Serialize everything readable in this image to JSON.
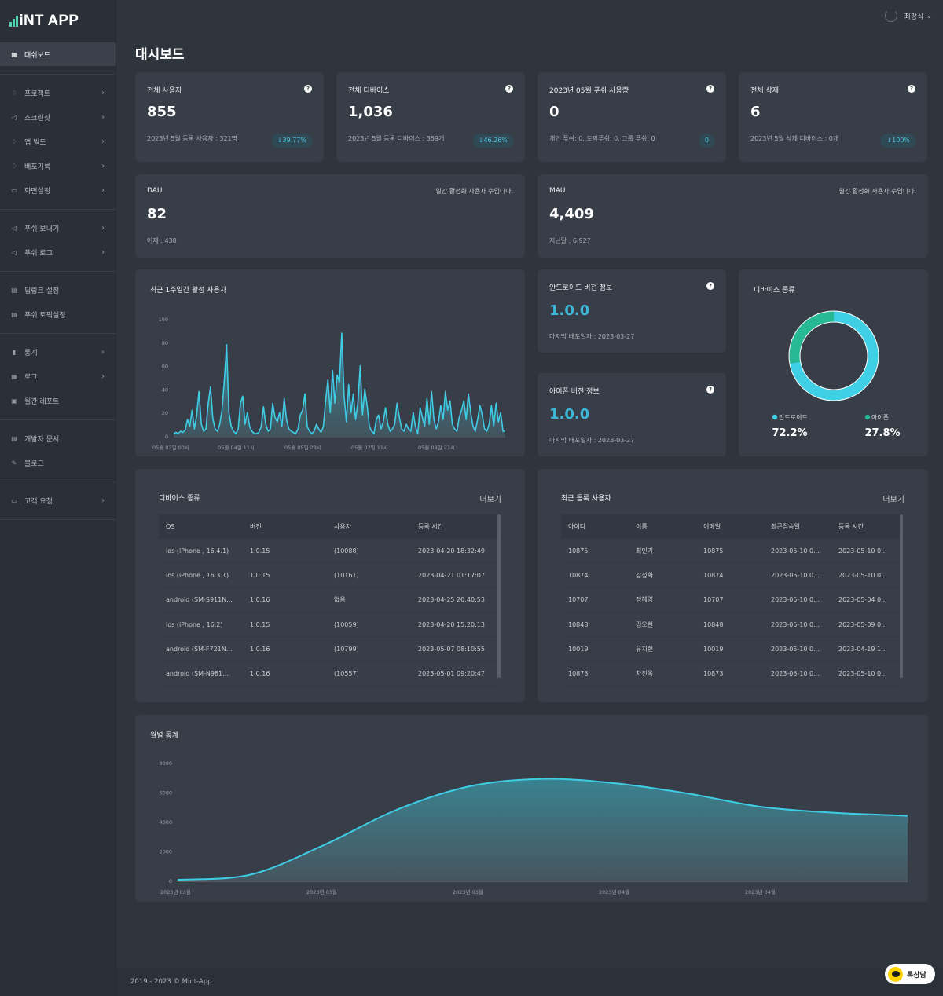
{
  "app": {
    "logo_text": "iNT APP",
    "accent": "#4cd4b0"
  },
  "header": {
    "user_name": "최강식",
    "page_title": "대시보드"
  },
  "sidebar": {
    "active": {
      "label": "대쉬보드",
      "icon": "grid-icon"
    },
    "groups": [
      [
        {
          "label": "프로젝트",
          "icon": "diamond-icon",
          "chev": "›"
        },
        {
          "label": "스크린샷",
          "icon": "send-icon",
          "chev": "›"
        },
        {
          "label": "앱 빌드",
          "icon": "diamond-icon",
          "chev": "›"
        },
        {
          "label": "배포기록",
          "icon": "diamond-icon",
          "chev": "›"
        },
        {
          "label": "화면설정",
          "icon": "card-icon",
          "chev": "›"
        }
      ],
      [
        {
          "label": "푸쉬 보내기",
          "icon": "send-icon",
          "chev": "›"
        },
        {
          "label": "푸쉬 로그",
          "icon": "send-icon",
          "chev": "›"
        }
      ],
      [
        {
          "label": "딥링크 설정",
          "icon": "doc-icon",
          "chev": ""
        },
        {
          "label": "푸쉬 토픽설정",
          "icon": "doc-icon",
          "chev": ""
        }
      ],
      [
        {
          "label": "통계",
          "icon": "bar-chart-icon",
          "chev": "›"
        },
        {
          "label": "로그",
          "icon": "table-icon",
          "chev": "›"
        },
        {
          "label": "월간 레포트",
          "icon": "calendar-icon",
          "chev": ""
        }
      ],
      [
        {
          "label": "개발자 문서",
          "icon": "doc-icon",
          "chev": ""
        },
        {
          "label": "블로그",
          "icon": "pen-icon",
          "chev": ""
        }
      ],
      [
        {
          "label": "고객 요청",
          "icon": "chat-icon",
          "chev": "›"
        }
      ]
    ]
  },
  "stats": [
    {
      "title": "전체 사용자",
      "value": "855",
      "sub": "2023년 5월 등록 사용자 : 321명",
      "badge": "↓39.77%"
    },
    {
      "title": "전체 디바이스",
      "value": "1,036",
      "sub": "2023년 5월 등록 디바이스 : 359개",
      "badge": "↓46.26%"
    },
    {
      "title": "2023년 05월 푸쉬 사용량",
      "value": "0",
      "sub": "개인 푸쉬: 0, 토픽푸쉬: 0, 그룹 푸쉬: 0",
      "badge": "0"
    },
    {
      "title": "전체 삭제",
      "value": "6",
      "sub": "2023년 5월 삭제 디바이스 : 0개",
      "badge": "↓100%"
    }
  ],
  "dau": {
    "title": "DAU",
    "desc": "일간 활성화 사용자 수입니다.",
    "value": "82",
    "sub": "어제 : 438"
  },
  "mau": {
    "title": "MAU",
    "desc": "월간 활성화 사용자 수입니다.",
    "value": "4,409",
    "sub": "지난달 : 6,927"
  },
  "android": {
    "title": "안드로이드 버전 정보",
    "version": "1.0.0",
    "sub": "마지막 배포일자 : 2023-03-27"
  },
  "ios": {
    "title": "아이폰 버전 정보",
    "version": "1.0.0",
    "sub": "마지막 배포일자 : 2023-03-27"
  },
  "device_types": {
    "title": "디바이스 종류",
    "chart_data": {
      "type": "pie",
      "labels": [
        "안드로이드",
        "아이폰"
      ],
      "values": [
        72.2,
        27.8
      ],
      "colors": [
        "#3fd0e6",
        "#27b894"
      ],
      "value_labels": [
        "72.2%",
        "27.8%"
      ]
    }
  },
  "weekly": {
    "title": "최근 1주일간 활성 사용자",
    "chart_data": {
      "type": "area",
      "y_ticks": [
        "100",
        "80",
        "60",
        "40",
        "20",
        "0"
      ],
      "ylim": [
        0,
        100
      ],
      "x_ticks": [
        "05월 03일 00시",
        "05월 04일 11시",
        "05월 05일 23시",
        "05월 07일 11시",
        "05월 08일 23시"
      ],
      "values": [
        2,
        3,
        2,
        4,
        3,
        5,
        14,
        8,
        22,
        6,
        18,
        38,
        10,
        4,
        6,
        28,
        42,
        15,
        6,
        4,
        10,
        22,
        48,
        78,
        20,
        8,
        4,
        2,
        6,
        28,
        34,
        10,
        20,
        8,
        4,
        2,
        2,
        3,
        8,
        25,
        10,
        4,
        6,
        28,
        16,
        12,
        20,
        8,
        32,
        14,
        6,
        4,
        3,
        2,
        6,
        18,
        22,
        36,
        8,
        4,
        2,
        4,
        10,
        6,
        3,
        8,
        30,
        48,
        20,
        56,
        28,
        52,
        46,
        88,
        34,
        12,
        44,
        20,
        36,
        14,
        28,
        60,
        18,
        40,
        26,
        8,
        4,
        2,
        14,
        18,
        6,
        12,
        24,
        10,
        4,
        6,
        10,
        28,
        16,
        6,
        4,
        10,
        6,
        4,
        20,
        8,
        2,
        24,
        16,
        8,
        32,
        10,
        38,
        14,
        6,
        12,
        26,
        14,
        38,
        22,
        30,
        10,
        6,
        4,
        16,
        22,
        30,
        14,
        36,
        20,
        8,
        4,
        14,
        26,
        18,
        6,
        4,
        10,
        26,
        8,
        28,
        12,
        20,
        4,
        4
      ]
    }
  },
  "device_table": {
    "title": "디바이스 종류",
    "more": "더보기",
    "headers": [
      "OS",
      "버전",
      "사용자",
      "등록 시간"
    ],
    "rows": [
      [
        "ios (iPhone , 16.4.1)",
        "1.0.15",
        "(10088)",
        "2023-04-20 18:32:49"
      ],
      [
        "ios (iPhone , 16.3.1)",
        "1.0.15",
        "(10161)",
        "2023-04-21 01:17:07"
      ],
      [
        "android (SM-S911N...",
        "1.0.16",
        "없음",
        "2023-04-25 20:40:53"
      ],
      [
        "ios (iPhone , 16.2)",
        "1.0.15",
        "(10059)",
        "2023-04-20 15:20:13"
      ],
      [
        "android (SM-F721N...",
        "1.0.16",
        "(10799)",
        "2023-05-07 08:10:55"
      ],
      [
        "android (SM-N981...",
        "1.0.16",
        "(10557)",
        "2023-05-01 09:20:47"
      ]
    ]
  },
  "user_table": {
    "title": "최근 등록 사용자",
    "more": "더보기",
    "headers": [
      "아이디",
      "이름",
      "이메일",
      "최근접속일",
      "등록 시간"
    ],
    "rows": [
      [
        "10875",
        "최민기",
        "10875",
        "2023-05-10 0...",
        "2023-05-10 0..."
      ],
      [
        "10874",
        "강성화",
        "10874",
        "2023-05-10 0...",
        "2023-05-10 0..."
      ],
      [
        "10707",
        "정혜영",
        "10707",
        "2023-05-10 0...",
        "2023-05-04 0..."
      ],
      [
        "10848",
        "김오현",
        "10848",
        "2023-05-10 0...",
        "2023-05-09 0..."
      ],
      [
        "10019",
        "유지현",
        "10019",
        "2023-05-10 0...",
        "2023-04-19 1..."
      ],
      [
        "10873",
        "차진옥",
        "10873",
        "2023-05-10 0...",
        "2023-05-10 0..."
      ]
    ]
  },
  "monthly": {
    "title": "월별 통계",
    "chart_data": {
      "type": "area",
      "y_ticks": [
        "8000",
        "6000",
        "4000",
        "2000",
        "0"
      ],
      "ylim": [
        0,
        8000
      ],
      "x_ticks": [
        "2023년 03월",
        "2023년 03월",
        "2023년 03월",
        "2023년 04월",
        "2023년 04월"
      ],
      "values": [
        50,
        400,
        2400,
        4800,
        6400,
        6900,
        6600,
        5900,
        5000,
        4600,
        4400
      ]
    }
  },
  "footer": {
    "text": "2019 - 2023 © Mint-App"
  },
  "chat_button": {
    "label": "톡상담"
  }
}
